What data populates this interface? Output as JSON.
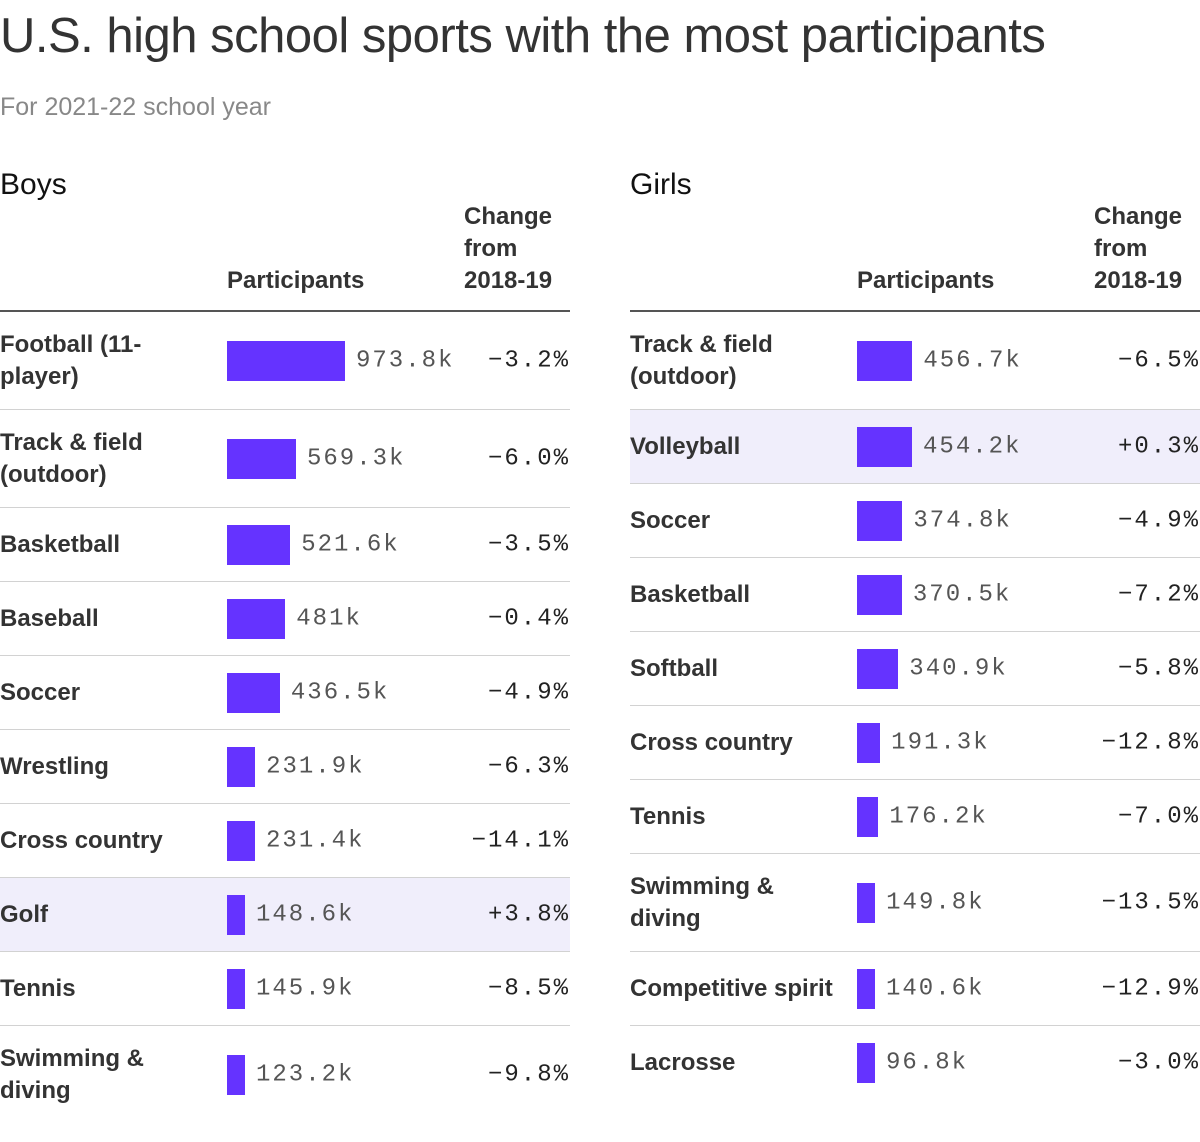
{
  "title": "U.S. high school sports with the most participants",
  "subtitle": "For 2021-22 school year",
  "colors": {
    "bar": "#6533ff",
    "highlight_row": "#f0eefb"
  },
  "chart_data": [
    {
      "type": "bar",
      "title": "Boys",
      "columns": {
        "participants": "Participants",
        "change": "Change from 2018-19"
      },
      "categories": [
        "Football (11-player)",
        "Track & field (outdoor)",
        "Basketball",
        "Baseball",
        "Soccer",
        "Wrestling",
        "Cross country",
        "Golf",
        "Tennis",
        "Swimming & diving"
      ],
      "values": [
        973.8,
        569.3,
        521.6,
        481,
        436.5,
        231.9,
        231.4,
        148.6,
        145.9,
        123.2
      ],
      "value_labels": [
        "973.8k",
        "569.3k",
        "521.6k",
        "481k",
        "436.5k",
        "231.9k",
        "231.4k",
        "148.6k",
        "145.9k",
        "123.2k"
      ],
      "change": [
        "−3.2%",
        "−6.0%",
        "−3.5%",
        "−0.4%",
        "−4.9%",
        "−6.3%",
        "−14.1%",
        "+3.8%",
        "−8.5%",
        "−9.8%"
      ],
      "highlighted": [
        "Golf"
      ],
      "xlim": [
        0,
        973.8
      ]
    },
    {
      "type": "bar",
      "title": "Girls",
      "columns": {
        "participants": "Participants",
        "change": "Change from 2018-19"
      },
      "categories": [
        "Track & field (outdoor)",
        "Volleyball",
        "Soccer",
        "Basketball",
        "Softball",
        "Cross country",
        "Tennis",
        "Swimming & diving",
        "Competitive spirit",
        "Lacrosse"
      ],
      "values": [
        456.7,
        454.2,
        374.8,
        370.5,
        340.9,
        191.3,
        176.2,
        149.8,
        140.6,
        96.8
      ],
      "value_labels": [
        "456.7k",
        "454.2k",
        "374.8k",
        "370.5k",
        "340.9k",
        "191.3k",
        "176.2k",
        "149.8k",
        "140.6k",
        "96.8k"
      ],
      "change": [
        "−6.5%",
        "+0.3%",
        "−4.9%",
        "−7.2%",
        "−5.8%",
        "−12.8%",
        "−7.0%",
        "−13.5%",
        "−12.9%",
        "−3.0%"
      ],
      "highlighted": [
        "Volleyball"
      ],
      "xlim": [
        0,
        973.8
      ]
    }
  ]
}
